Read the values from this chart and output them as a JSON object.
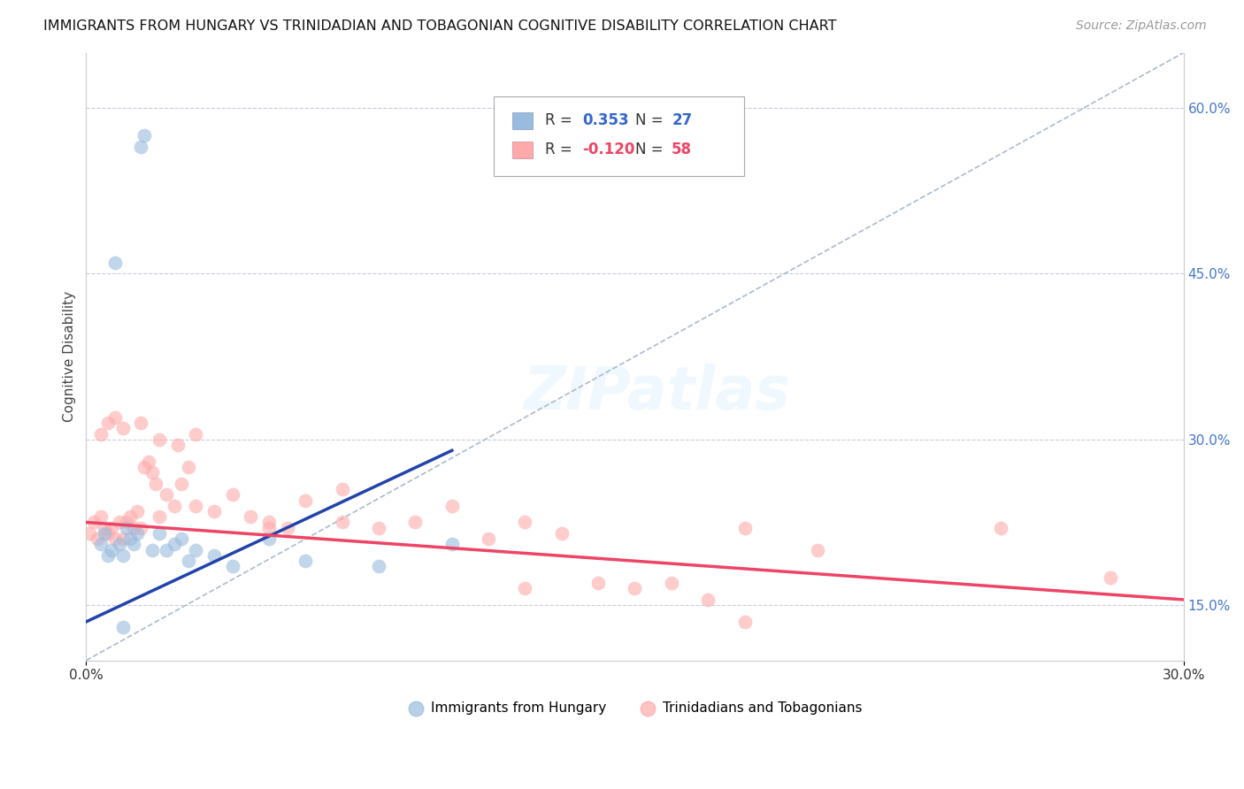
{
  "title": "IMMIGRANTS FROM HUNGARY VS TRINIDADIAN AND TOBAGONIAN COGNITIVE DISABILITY CORRELATION CHART",
  "source": "Source: ZipAtlas.com",
  "ylabel_label": "Cognitive Disability",
  "right_yticks": [
    15.0,
    30.0,
    45.0,
    60.0
  ],
  "legend_blue_r": "0.353",
  "legend_blue_n": "27",
  "legend_pink_r": "-0.120",
  "legend_pink_n": "58",
  "legend_label_blue": "Immigrants from Hungary",
  "legend_label_pink": "Trinidadians and Tobagonians",
  "blue_color": "#99BBDD",
  "pink_color": "#FFAAAA",
  "blue_line_color": "#2244AA",
  "pink_line_color": "#EE4466",
  "ref_line_color": "#AABBCC",
  "xlim": [
    0.0,
    30.0
  ],
  "ylim": [
    10.0,
    65.0
  ],
  "blue_points_x": [
    1.5,
    1.6,
    0.8,
    0.4,
    0.5,
    0.6,
    0.7,
    0.9,
    1.0,
    1.1,
    1.2,
    1.3,
    1.4,
    1.8,
    2.0,
    2.2,
    2.4,
    2.6,
    3.0,
    3.5,
    4.0,
    5.0,
    6.0,
    8.0,
    10.0,
    2.8,
    1.0
  ],
  "blue_points_y": [
    56.5,
    57.5,
    46.0,
    20.5,
    21.5,
    19.5,
    20.0,
    20.5,
    19.5,
    22.0,
    21.0,
    20.5,
    21.5,
    20.0,
    21.5,
    20.0,
    20.5,
    21.0,
    20.0,
    19.5,
    18.5,
    21.0,
    19.0,
    18.5,
    20.5,
    19.0,
    13.0
  ],
  "pink_points_x": [
    0.1,
    0.2,
    0.3,
    0.4,
    0.5,
    0.6,
    0.7,
    0.8,
    0.9,
    1.0,
    1.1,
    1.2,
    1.3,
    1.4,
    1.5,
    1.6,
    1.7,
    1.8,
    1.9,
    2.0,
    2.2,
    2.4,
    2.6,
    2.8,
    3.0,
    3.5,
    4.0,
    4.5,
    5.0,
    5.5,
    6.0,
    7.0,
    8.0,
    9.0,
    10.0,
    11.0,
    12.0,
    13.0,
    14.0,
    15.0,
    16.0,
    17.0,
    18.0,
    20.0,
    25.0,
    28.0,
    0.4,
    0.6,
    0.8,
    1.0,
    1.5,
    2.0,
    2.5,
    3.0,
    5.0,
    7.0,
    12.0,
    18.0
  ],
  "pink_points_y": [
    21.5,
    22.5,
    21.0,
    23.0,
    22.0,
    21.5,
    22.0,
    21.0,
    22.5,
    21.0,
    22.5,
    23.0,
    22.0,
    23.5,
    22.0,
    27.5,
    28.0,
    27.0,
    26.0,
    23.0,
    25.0,
    24.0,
    26.0,
    27.5,
    24.0,
    23.5,
    25.0,
    23.0,
    22.5,
    22.0,
    24.5,
    25.5,
    22.0,
    22.5,
    24.0,
    21.0,
    22.5,
    21.5,
    17.0,
    16.5,
    17.0,
    15.5,
    22.0,
    20.0,
    22.0,
    17.5,
    30.5,
    31.5,
    32.0,
    31.0,
    31.5,
    30.0,
    29.5,
    30.5,
    22.0,
    22.5,
    16.5,
    13.5
  ],
  "blue_line_x0": 0.0,
  "blue_line_x1": 10.0,
  "blue_line_y0": 13.5,
  "blue_line_y1": 29.0,
  "pink_line_x0": 0.0,
  "pink_line_x1": 30.0,
  "pink_line_y0": 22.5,
  "pink_line_y1": 15.5,
  "ref_line_x0": 0.0,
  "ref_line_x1": 30.0,
  "ref_line_y0": 10.0,
  "ref_line_y1": 65.0
}
